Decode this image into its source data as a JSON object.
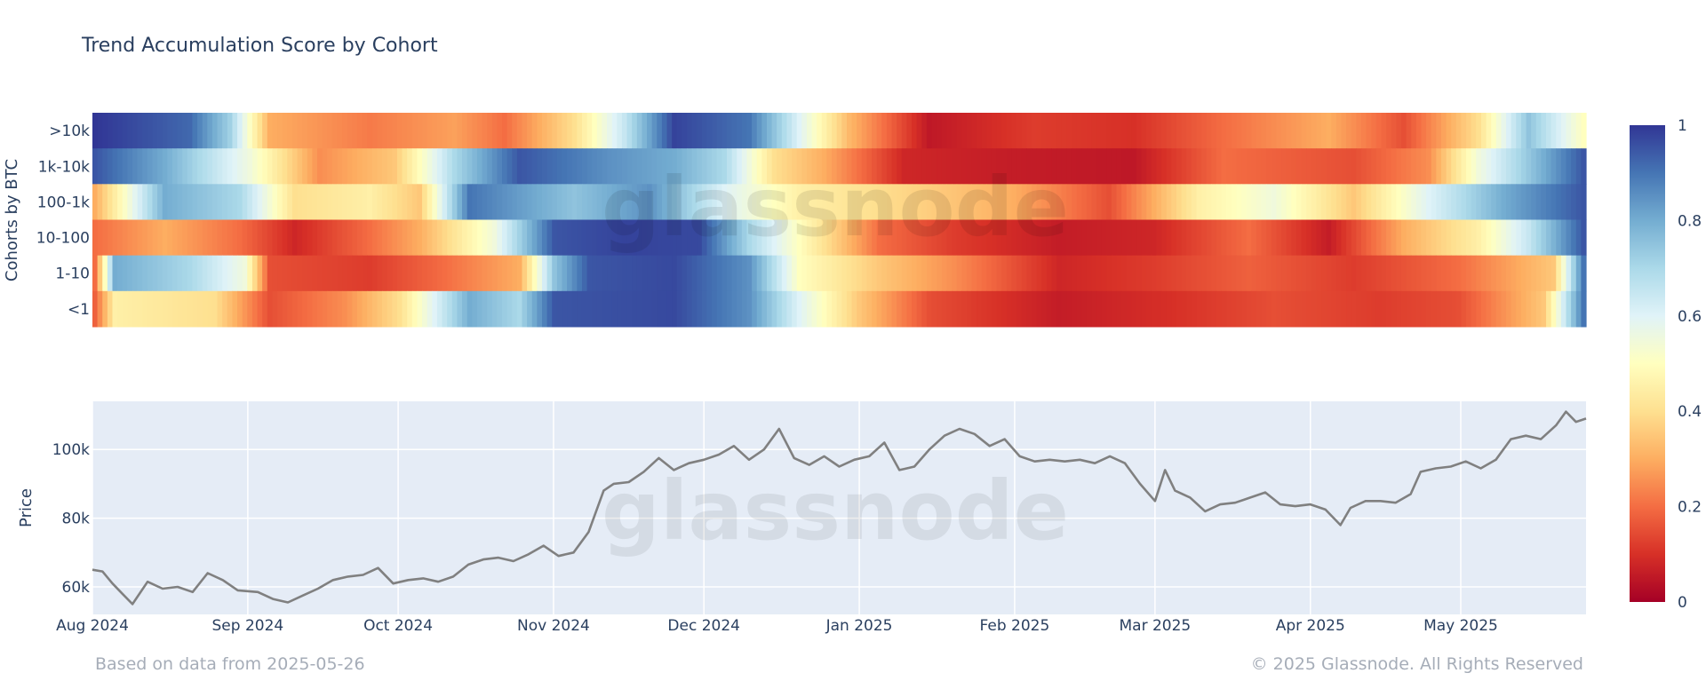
{
  "chart_data": [
    {
      "type": "heatmap",
      "title": "Trend Accumulation Score by Cohort",
      "ylabel": "Cohorts by BTC",
      "rows": [
        ">10k",
        "1k-10k",
        "100-1k",
        "10-100",
        "1-10",
        "<1"
      ],
      "x_range": [
        "2024-08-01",
        "2025-05-26"
      ],
      "zlim": [
        0,
        1
      ],
      "colorbar_ticks": [
        "0",
        "0.2",
        "0.4",
        "0.6",
        "0.8",
        "1"
      ],
      "colorscale": [
        "#a50026",
        "#d73027",
        "#f46d43",
        "#fdae61",
        "#fee090",
        "#ffffbf",
        "#e0f3f8",
        "#abd9e9",
        "#74add1",
        "#4575b4",
        "#313695"
      ],
      "segments": [
        {
          "row": ">10k",
          "points": [
            [
              "2024-08-01",
              1.0
            ],
            [
              "2024-08-20",
              0.92
            ],
            [
              "2024-08-28",
              0.72
            ],
            [
              "2024-09-05",
              0.3
            ],
            [
              "2024-09-25",
              0.22
            ],
            [
              "2024-10-12",
              0.28
            ],
            [
              "2024-10-22",
              0.2
            ],
            [
              "2024-11-05",
              0.4
            ],
            [
              "2024-11-15",
              0.65
            ],
            [
              "2024-11-25",
              0.98
            ],
            [
              "2024-12-10",
              0.9
            ],
            [
              "2024-12-20",
              0.6
            ],
            [
              "2024-12-30",
              0.32
            ],
            [
              "2025-01-15",
              0.05
            ],
            [
              "2025-02-05",
              0.12
            ],
            [
              "2025-02-25",
              0.1
            ],
            [
              "2025-03-15",
              0.2
            ],
            [
              "2025-04-05",
              0.3
            ],
            [
              "2025-04-20",
              0.15
            ],
            [
              "2025-05-05",
              0.4
            ],
            [
              "2025-05-15",
              0.75
            ],
            [
              "2025-05-26",
              0.5
            ]
          ]
        },
        {
          "row": "1k-10k",
          "points": [
            [
              "2024-08-01",
              0.95
            ],
            [
              "2024-08-15",
              0.8
            ],
            [
              "2024-09-01",
              0.55
            ],
            [
              "2024-09-15",
              0.25
            ],
            [
              "2024-09-30",
              0.35
            ],
            [
              "2024-10-12",
              0.7
            ],
            [
              "2024-10-25",
              0.95
            ],
            [
              "2024-11-12",
              0.85
            ],
            [
              "2024-11-25",
              0.8
            ],
            [
              "2024-12-05",
              0.7
            ],
            [
              "2024-12-15",
              0.4
            ],
            [
              "2024-12-25",
              0.3
            ],
            [
              "2025-01-10",
              0.08
            ],
            [
              "2025-02-01",
              0.06
            ],
            [
              "2025-02-25",
              0.05
            ],
            [
              "2025-03-15",
              0.2
            ],
            [
              "2025-04-10",
              0.15
            ],
            [
              "2025-04-25",
              0.25
            ],
            [
              "2025-05-05",
              0.55
            ],
            [
              "2025-05-26",
              0.95
            ]
          ]
        },
        {
          "row": "100-1k",
          "points": [
            [
              "2024-08-01",
              0.3
            ],
            [
              "2024-08-15",
              0.8
            ],
            [
              "2024-08-30",
              0.7
            ],
            [
              "2024-09-10",
              0.4
            ],
            [
              "2024-09-25",
              0.45
            ],
            [
              "2024-10-05",
              0.35
            ],
            [
              "2024-10-15",
              0.9
            ],
            [
              "2024-11-05",
              0.75
            ],
            [
              "2024-11-20",
              0.85
            ],
            [
              "2024-12-05",
              0.6
            ],
            [
              "2024-12-20",
              0.45
            ],
            [
              "2025-01-10",
              0.38
            ],
            [
              "2025-02-01",
              0.3
            ],
            [
              "2025-02-20",
              0.15
            ],
            [
              "2025-03-10",
              0.45
            ],
            [
              "2025-03-25",
              0.55
            ],
            [
              "2025-04-10",
              0.35
            ],
            [
              "2025-04-25",
              0.6
            ],
            [
              "2025-05-10",
              0.8
            ],
            [
              "2025-05-26",
              0.95
            ]
          ]
        },
        {
          "row": "10-100",
          "points": [
            [
              "2024-08-01",
              0.2
            ],
            [
              "2024-08-15",
              0.3
            ],
            [
              "2024-08-30",
              0.2
            ],
            [
              "2024-09-10",
              0.08
            ],
            [
              "2024-09-25",
              0.2
            ],
            [
              "2024-10-05",
              0.3
            ],
            [
              "2024-10-20",
              0.55
            ],
            [
              "2024-11-01",
              0.95
            ],
            [
              "2024-11-15",
              0.98
            ],
            [
              "2024-11-30",
              0.97
            ],
            [
              "2024-12-10",
              0.7
            ],
            [
              "2024-12-20",
              0.5
            ],
            [
              "2025-01-05",
              0.2
            ],
            [
              "2025-01-20",
              0.12
            ],
            [
              "2025-02-10",
              0.06
            ],
            [
              "2025-03-01",
              0.08
            ],
            [
              "2025-03-20",
              0.2
            ],
            [
              "2025-04-05",
              0.06
            ],
            [
              "2025-04-20",
              0.3
            ],
            [
              "2025-05-05",
              0.45
            ],
            [
              "2025-05-15",
              0.65
            ],
            [
              "2025-05-26",
              0.95
            ]
          ]
        },
        {
          "row": "1-10",
          "points": [
            [
              "2024-08-01",
              0.2
            ],
            [
              "2024-08-05",
              0.8
            ],
            [
              "2024-08-20",
              0.7
            ],
            [
              "2024-08-31",
              0.55
            ],
            [
              "2024-09-05",
              0.15
            ],
            [
              "2024-09-25",
              0.12
            ],
            [
              "2024-10-10",
              0.2
            ],
            [
              "2024-10-25",
              0.3
            ],
            [
              "2024-11-01",
              0.75
            ],
            [
              "2024-11-08",
              0.95
            ],
            [
              "2024-11-25",
              0.97
            ],
            [
              "2024-12-10",
              0.85
            ],
            [
              "2024-12-20",
              0.5
            ],
            [
              "2025-01-05",
              0.35
            ],
            [
              "2025-01-20",
              0.25
            ],
            [
              "2025-02-10",
              0.08
            ],
            [
              "2025-03-01",
              0.12
            ],
            [
              "2025-03-20",
              0.18
            ],
            [
              "2025-04-10",
              0.12
            ],
            [
              "2025-05-01",
              0.2
            ],
            [
              "2025-05-20",
              0.35
            ],
            [
              "2025-05-26",
              0.9
            ]
          ]
        },
        {
          "row": "<1",
          "points": [
            [
              "2024-08-01",
              0.18
            ],
            [
              "2024-08-05",
              0.45
            ],
            [
              "2024-08-25",
              0.4
            ],
            [
              "2024-09-05",
              0.15
            ],
            [
              "2024-09-20",
              0.25
            ],
            [
              "2024-10-01",
              0.4
            ],
            [
              "2024-10-15",
              0.8
            ],
            [
              "2024-10-25",
              0.7
            ],
            [
              "2024-11-01",
              0.95
            ],
            [
              "2024-11-25",
              0.97
            ],
            [
              "2024-12-10",
              0.85
            ],
            [
              "2024-12-20",
              0.6
            ],
            [
              "2025-01-01",
              0.35
            ],
            [
              "2025-01-15",
              0.15
            ],
            [
              "2025-02-10",
              0.06
            ],
            [
              "2025-03-05",
              0.1
            ],
            [
              "2025-03-25",
              0.15
            ],
            [
              "2025-04-15",
              0.12
            ],
            [
              "2025-05-01",
              0.15
            ],
            [
              "2025-05-18",
              0.35
            ],
            [
              "2025-05-26",
              0.9
            ]
          ]
        }
      ]
    },
    {
      "type": "line",
      "ylabel": "Price",
      "xlim": [
        "2024-08-01",
        "2025-05-26"
      ],
      "ylim": [
        52000,
        114000
      ],
      "y_ticks": [
        60000,
        80000,
        100000
      ],
      "y_tick_labels": [
        "60k",
        "80k",
        "100k"
      ],
      "x_ticks": [
        "2024-08-01",
        "2024-09-01",
        "2024-10-01",
        "2024-11-01",
        "2024-12-01",
        "2025-01-01",
        "2025-02-01",
        "2025-03-01",
        "2025-04-01",
        "2025-05-01"
      ],
      "x_tick_labels": [
        "Aug 2024",
        "Sep 2024",
        "Oct 2024",
        "Nov 2024",
        "Dec 2024",
        "Jan 2025",
        "Feb 2025",
        "Mar 2025",
        "Apr 2025",
        "May 2025"
      ],
      "line_color": "#808080",
      "grid": true,
      "series": [
        {
          "x": [
            "2024-08-01",
            "2024-08-03",
            "2024-08-05",
            "2024-08-07",
            "2024-08-09",
            "2024-08-12",
            "2024-08-15",
            "2024-08-18",
            "2024-08-21",
            "2024-08-24",
            "2024-08-27",
            "2024-08-30",
            "2024-09-03",
            "2024-09-06",
            "2024-09-09",
            "2024-09-12",
            "2024-09-15",
            "2024-09-18",
            "2024-09-21",
            "2024-09-24",
            "2024-09-27",
            "2024-09-30",
            "2024-10-03",
            "2024-10-06",
            "2024-10-09",
            "2024-10-12",
            "2024-10-15",
            "2024-10-18",
            "2024-10-21",
            "2024-10-24",
            "2024-10-27",
            "2024-10-30",
            "2024-11-02",
            "2024-11-05",
            "2024-11-08",
            "2024-11-11",
            "2024-11-13",
            "2024-11-16",
            "2024-11-19",
            "2024-11-22",
            "2024-11-25",
            "2024-11-28",
            "2024-12-01",
            "2024-12-04",
            "2024-12-07",
            "2024-12-10",
            "2024-12-13",
            "2024-12-16",
            "2024-12-19",
            "2024-12-22",
            "2024-12-25",
            "2024-12-28",
            "2024-12-31",
            "2025-01-03",
            "2025-01-06",
            "2025-01-09",
            "2025-01-12",
            "2025-01-15",
            "2025-01-18",
            "2025-01-21",
            "2025-01-24",
            "2025-01-27",
            "2025-01-30",
            "2025-02-02",
            "2025-02-05",
            "2025-02-08",
            "2025-02-11",
            "2025-02-14",
            "2025-02-17",
            "2025-02-20",
            "2025-02-23",
            "2025-02-26",
            "2025-03-01",
            "2025-03-03",
            "2025-03-05",
            "2025-03-08",
            "2025-03-11",
            "2025-03-14",
            "2025-03-17",
            "2025-03-20",
            "2025-03-23",
            "2025-03-26",
            "2025-03-29",
            "2025-04-01",
            "2025-04-04",
            "2025-04-07",
            "2025-04-09",
            "2025-04-12",
            "2025-04-15",
            "2025-04-18",
            "2025-04-21",
            "2025-04-23",
            "2025-04-26",
            "2025-04-29",
            "2025-05-02",
            "2025-05-05",
            "2025-05-08",
            "2025-05-11",
            "2025-05-14",
            "2025-05-17",
            "2025-05-20",
            "2025-05-22",
            "2025-05-24",
            "2025-05-26"
          ],
          "y": [
            65000,
            64500,
            61000,
            58000,
            55000,
            61500,
            59500,
            60000,
            58500,
            64000,
            62000,
            59000,
            58500,
            56500,
            55500,
            57500,
            59500,
            62000,
            63000,
            63500,
            65500,
            61000,
            62000,
            62500,
            61500,
            63000,
            66500,
            68000,
            68500,
            67500,
            69500,
            72000,
            69000,
            70000,
            76000,
            88000,
            90000,
            90500,
            93500,
            97500,
            94000,
            96000,
            97000,
            98500,
            101000,
            97000,
            100000,
            106000,
            97500,
            95500,
            98000,
            95000,
            97000,
            98000,
            102000,
            94000,
            95000,
            100000,
            104000,
            106000,
            104500,
            101000,
            103000,
            98000,
            96500,
            97000,
            96500,
            97000,
            96000,
            98000,
            96000,
            90000,
            85000,
            94000,
            88000,
            86000,
            82000,
            84000,
            84500,
            86000,
            87500,
            84000,
            83500,
            84000,
            82500,
            78000,
            83000,
            85000,
            85000,
            84500,
            87000,
            93500,
            94500,
            95000,
            96500,
            94500,
            97000,
            103000,
            104000,
            103000,
            107000,
            111000,
            108000,
            109000
          ]
        }
      ]
    }
  ],
  "footer": {
    "source": "Based on data from 2025-05-26",
    "copyright": "© 2025 Glassnode. All Rights Reserved"
  },
  "watermark": "glassnode"
}
